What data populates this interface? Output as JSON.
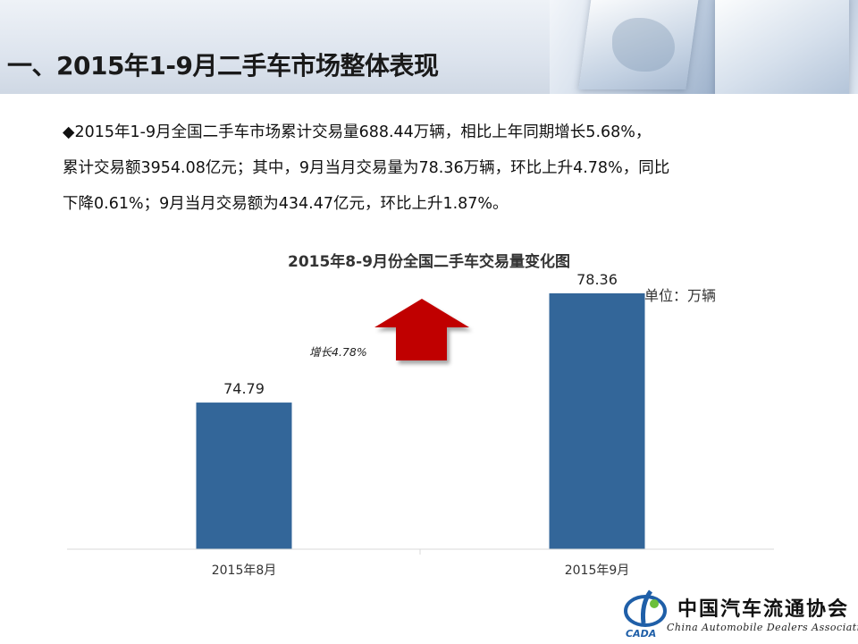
{
  "header": {
    "title": "一、2015年1-9月二手车市场整体表现"
  },
  "summary": {
    "line1": "◆2015年1-9月全国二手车市场累计交易量688.44万辆，相比上年同期增长5.68%，",
    "line2": "累计交易额3954.08亿元；其中，9月当月交易量为78.36万辆，环比上升4.78%，同比",
    "line3": "下降0.61%；9月当月交易额为434.47亿元，环比上升1.87%。"
  },
  "chart_data": {
    "type": "bar",
    "title": "2015年8-9月份全国二手车交易量变化图",
    "unit": "单位：万辆",
    "categories": [
      "2015年8月",
      "2015年9月"
    ],
    "values": [
      74.79,
      78.36
    ],
    "value_labels": [
      "74.79",
      "78.36"
    ],
    "annotation": "增长4.78%",
    "bar_color": "#336699",
    "arrow_color": "#c00000",
    "grid": false,
    "legend": "none"
  },
  "logo": {
    "cn": "中国汽车流通协会",
    "en": "China Automobile Dealers Association",
    "mark_text": "CADA"
  }
}
